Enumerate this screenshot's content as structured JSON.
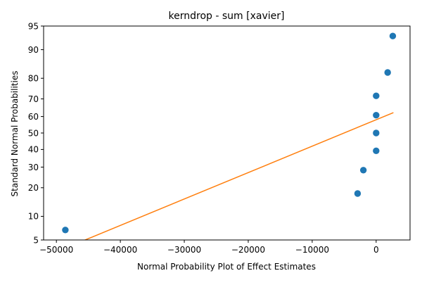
{
  "chart_data": {
    "type": "scatter",
    "title": "kerndrop - sum [xavier]",
    "xlabel": "Normal Probability Plot of Effect Estimates",
    "ylabel": "Standard Normal Probabilities",
    "xlim": [
      -52000,
      5300
    ],
    "ylim": [
      5,
      95
    ],
    "y_scale": "normal-probability",
    "x_ticks": [
      -50000,
      -40000,
      -30000,
      -20000,
      -10000,
      0
    ],
    "x_tick_labels": [
      "−50000",
      "−40000",
      "−30000",
      "−20000",
      "−10000",
      "0"
    ],
    "y_ticks": [
      5,
      10,
      20,
      30,
      40,
      50,
      60,
      70,
      80,
      90,
      95
    ],
    "y_tick_labels": [
      "5",
      "10",
      "20",
      "30",
      "40",
      "50",
      "60",
      "70",
      "80",
      "90",
      "95"
    ],
    "grid": false,
    "series": [
      {
        "kind": "points",
        "color": "#1f77b4",
        "x": [
          -48600,
          -2900,
          -2000,
          0,
          0,
          0,
          0,
          1800,
          2600
        ],
        "y": [
          6.8,
          17.6,
          28.4,
          39.2,
          50.0,
          60.8,
          71.6,
          82.4,
          93.2
        ]
      },
      {
        "kind": "line",
        "color": "#ff7f0e",
        "x": [
          -48700,
          2700
        ],
        "y": [
          3.8,
          62.3
        ]
      }
    ]
  }
}
